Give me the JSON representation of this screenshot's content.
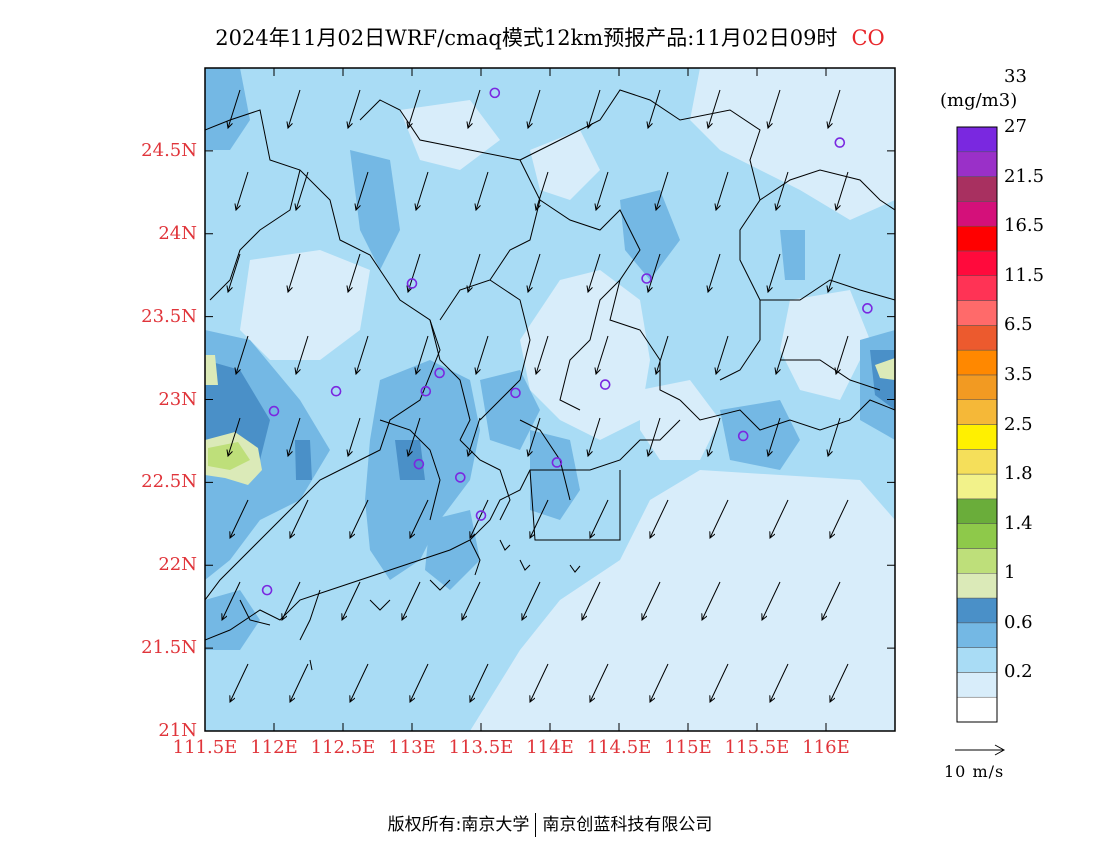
{
  "title": {
    "text": "2024年11月02日WRF/cmaq模式12km预报产品:11月02日09时",
    "species": "CO"
  },
  "map": {
    "lon_range": [
      111.5,
      116.5
    ],
    "lat_range": [
      21.0,
      25.0
    ],
    "lon_ticks": [
      {
        "value": 111.5,
        "label": "111.5E"
      },
      {
        "value": 112.0,
        "label": "112E"
      },
      {
        "value": 112.5,
        "label": "112.5E"
      },
      {
        "value": 113.0,
        "label": "113E"
      },
      {
        "value": 113.5,
        "label": "113.5E"
      },
      {
        "value": 114.0,
        "label": "114E"
      },
      {
        "value": 114.5,
        "label": "114.5E"
      },
      {
        "value": 115.0,
        "label": "115E"
      },
      {
        "value": 115.5,
        "label": "115.5E"
      },
      {
        "value": 116.0,
        "label": "116E"
      }
    ],
    "lat_ticks": [
      {
        "value": 21.0,
        "label": "21N"
      },
      {
        "value": 21.5,
        "label": "21.5N"
      },
      {
        "value": 22.0,
        "label": "22N"
      },
      {
        "value": 22.5,
        "label": "22.5N"
      },
      {
        "value": 23.0,
        "label": "23N"
      },
      {
        "value": 23.5,
        "label": "23.5N"
      },
      {
        "value": 24.0,
        "label": "24N"
      },
      {
        "value": 24.5,
        "label": "24.5N"
      }
    ],
    "stations": [
      {
        "lon": 113.6,
        "lat": 24.85
      },
      {
        "lon": 116.1,
        "lat": 24.55
      },
      {
        "lon": 113.0,
        "lat": 23.7
      },
      {
        "lon": 114.7,
        "lat": 23.73
      },
      {
        "lon": 116.3,
        "lat": 23.55
      },
      {
        "lon": 112.45,
        "lat": 23.05
      },
      {
        "lon": 112.0,
        "lat": 22.93
      },
      {
        "lon": 113.1,
        "lat": 23.05
      },
      {
        "lon": 113.2,
        "lat": 23.16
      },
      {
        "lon": 113.75,
        "lat": 23.04
      },
      {
        "lon": 114.4,
        "lat": 23.09
      },
      {
        "lon": 115.4,
        "lat": 22.78
      },
      {
        "lon": 113.05,
        "lat": 22.61
      },
      {
        "lon": 113.35,
        "lat": 22.53
      },
      {
        "lon": 114.05,
        "lat": 22.62
      },
      {
        "lon": 113.5,
        "lat": 22.3
      },
      {
        "lon": 111.95,
        "lat": 21.85
      }
    ]
  },
  "colorbar": {
    "unit": "(mg/m3)",
    "colors": [
      "#ffffff",
      "#d8edfa",
      "#a9dcf5",
      "#74b8e4",
      "#4a90c8",
      "#dbeab8",
      "#bedf7a",
      "#8ec94a",
      "#6aad3a",
      "#f2f28a",
      "#f5df5a",
      "#fff000",
      "#f5b838",
      "#f29a22",
      "#ff8800",
      "#ec5a2e",
      "#ff6a6a",
      "#ff3355",
      "#ff0a3c",
      "#ff0000",
      "#d4107a",
      "#a83060",
      "#9a30c8",
      "#7a28e0"
    ],
    "labels": [
      {
        "index": 2,
        "text": "0.2"
      },
      {
        "index": 4,
        "text": "0.6"
      },
      {
        "index": 6,
        "text": "1"
      },
      {
        "index": 8,
        "text": "1.4"
      },
      {
        "index": 10,
        "text": "1.8"
      },
      {
        "index": 12,
        "text": "2.5"
      },
      {
        "index": 14,
        "text": "3.5"
      },
      {
        "index": 16,
        "text": "6.5"
      },
      {
        "index": 18,
        "text": "11.5"
      },
      {
        "index": 20,
        "text": "16.5"
      },
      {
        "index": 22,
        "text": "21.5"
      },
      {
        "index": 24,
        "text": "27"
      },
      {
        "index": 26,
        "text": "33"
      }
    ]
  },
  "wind_legend": "10 m/s",
  "footer": {
    "left": "版权所有:南京大学",
    "right": "南京创蓝科技有限公司"
  },
  "colors": {
    "tick_label": "#e0343a",
    "species": "#e8262a",
    "station": "#7a28e0"
  }
}
